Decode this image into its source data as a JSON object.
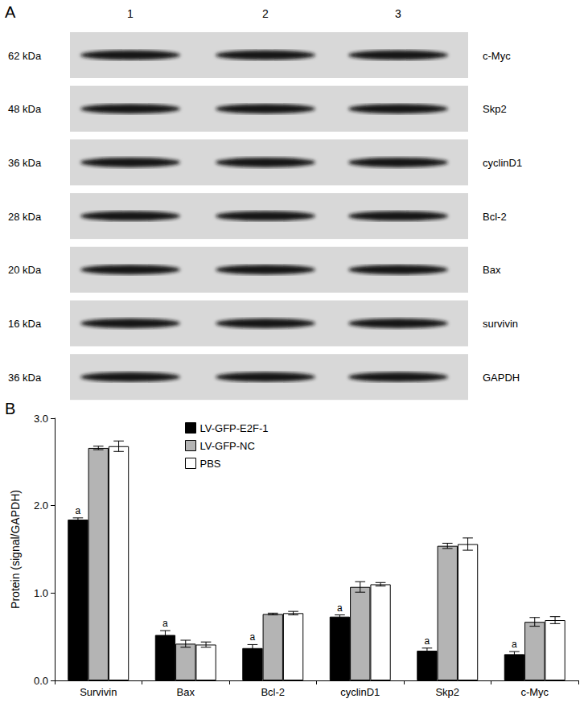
{
  "blot": {
    "panel_label": "A",
    "lanes": [
      "1",
      "2",
      "3"
    ],
    "rows": [
      {
        "size": "62 kDa",
        "protein": "c-Myc"
      },
      {
        "size": "48 kDa",
        "protein": "Skp2"
      },
      {
        "size": "36 kDa",
        "protein": "cyclinD1"
      },
      {
        "size": "28 kDa",
        "protein": "Bcl-2"
      },
      {
        "size": "20 kDa",
        "protein": "Bax"
      },
      {
        "size": "16 kDa",
        "protein": "survivin"
      },
      {
        "size": "36 kDa",
        "protein": "GAPDH"
      }
    ]
  },
  "chart_data": {
    "type": "bar",
    "panel_label": "B",
    "y_label": "Protein (signal/GAPDH)",
    "categories": [
      "Survivin",
      "Bax",
      "Bcl-2",
      "cyclinD1",
      "Skp2",
      "c-Myc"
    ],
    "series": [
      {
        "name": "LV-GFP-E2F-1",
        "color": "#000000",
        "values": [
          1.84,
          0.52,
          0.37,
          0.73,
          0.34,
          0.3
        ],
        "errors": [
          0.02,
          0.05,
          0.04,
          0.02,
          0.03,
          0.03
        ],
        "annotations": [
          "a",
          "a",
          "a",
          "a",
          "a",
          "a"
        ]
      },
      {
        "name": "LV-GFP-NC",
        "color": "#b4b4b4",
        "values": [
          2.66,
          0.42,
          0.76,
          1.07,
          1.54,
          0.67
        ],
        "errors": [
          0.02,
          0.04,
          0.01,
          0.06,
          0.03,
          0.05
        ]
      },
      {
        "name": "PBS",
        "color": "#ffffff",
        "values": [
          2.68,
          0.41,
          0.77,
          1.1,
          1.56,
          0.69
        ],
        "errors": [
          0.06,
          0.03,
          0.02,
          0.02,
          0.07,
          0.04
        ]
      }
    ],
    "ylim": [
      0,
      3
    ],
    "yticks": [
      {
        "value": 0,
        "label": "0.0"
      },
      {
        "value": 1,
        "label": "1.0"
      },
      {
        "value": 2,
        "label": "2.0"
      },
      {
        "value": 3,
        "label": "3.0"
      }
    ],
    "grid": false,
    "legend": "top"
  }
}
